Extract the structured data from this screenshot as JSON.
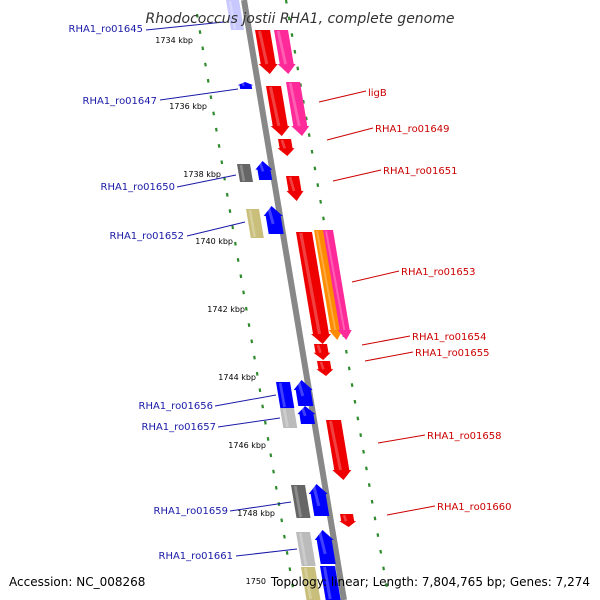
{
  "title": "Rhodococcus jostii RHA1, complete genome",
  "footer": {
    "accession": "Accession: NC_008268",
    "topology": "Topology: linear; Length: 7,804,765 bp; Genes: 7,274"
  },
  "colors": {
    "backbone": "#888888",
    "dots": "#2e8b2e",
    "left_label": "#1a1aa8",
    "right_label": "#cc0000",
    "red": "#ee0000",
    "pink": "#ff2a9a",
    "orange": "#ff8c00",
    "blue": "#0000ff",
    "gray": "#666666",
    "lightgray": "#bbbbbb",
    "khaki": "#c9bf7a"
  },
  "ticks": [
    "1734 kbp",
    "1736 kbp",
    "1738 kbp",
    "1740 kbp",
    "1742 kbp",
    "1744 kbp",
    "1746 kbp",
    "1748 kbp",
    "1750"
  ],
  "left_labels": [
    "RHA1_ro01645",
    "RHA1_ro01647",
    "RHA1_ro01650",
    "RHA1_ro01652",
    "RHA1_ro01656",
    "RHA1_ro01657",
    "RHA1_ro01659",
    "RHA1_ro01661"
  ],
  "right_labels": [
    "ligB",
    "RHA1_ro01649",
    "RHA1_ro01651",
    "RHA1_ro01653",
    "RHA1_ro01654",
    "RHA1_ro01655",
    "RHA1_ro01658",
    "RHA1_ro01660"
  ]
}
